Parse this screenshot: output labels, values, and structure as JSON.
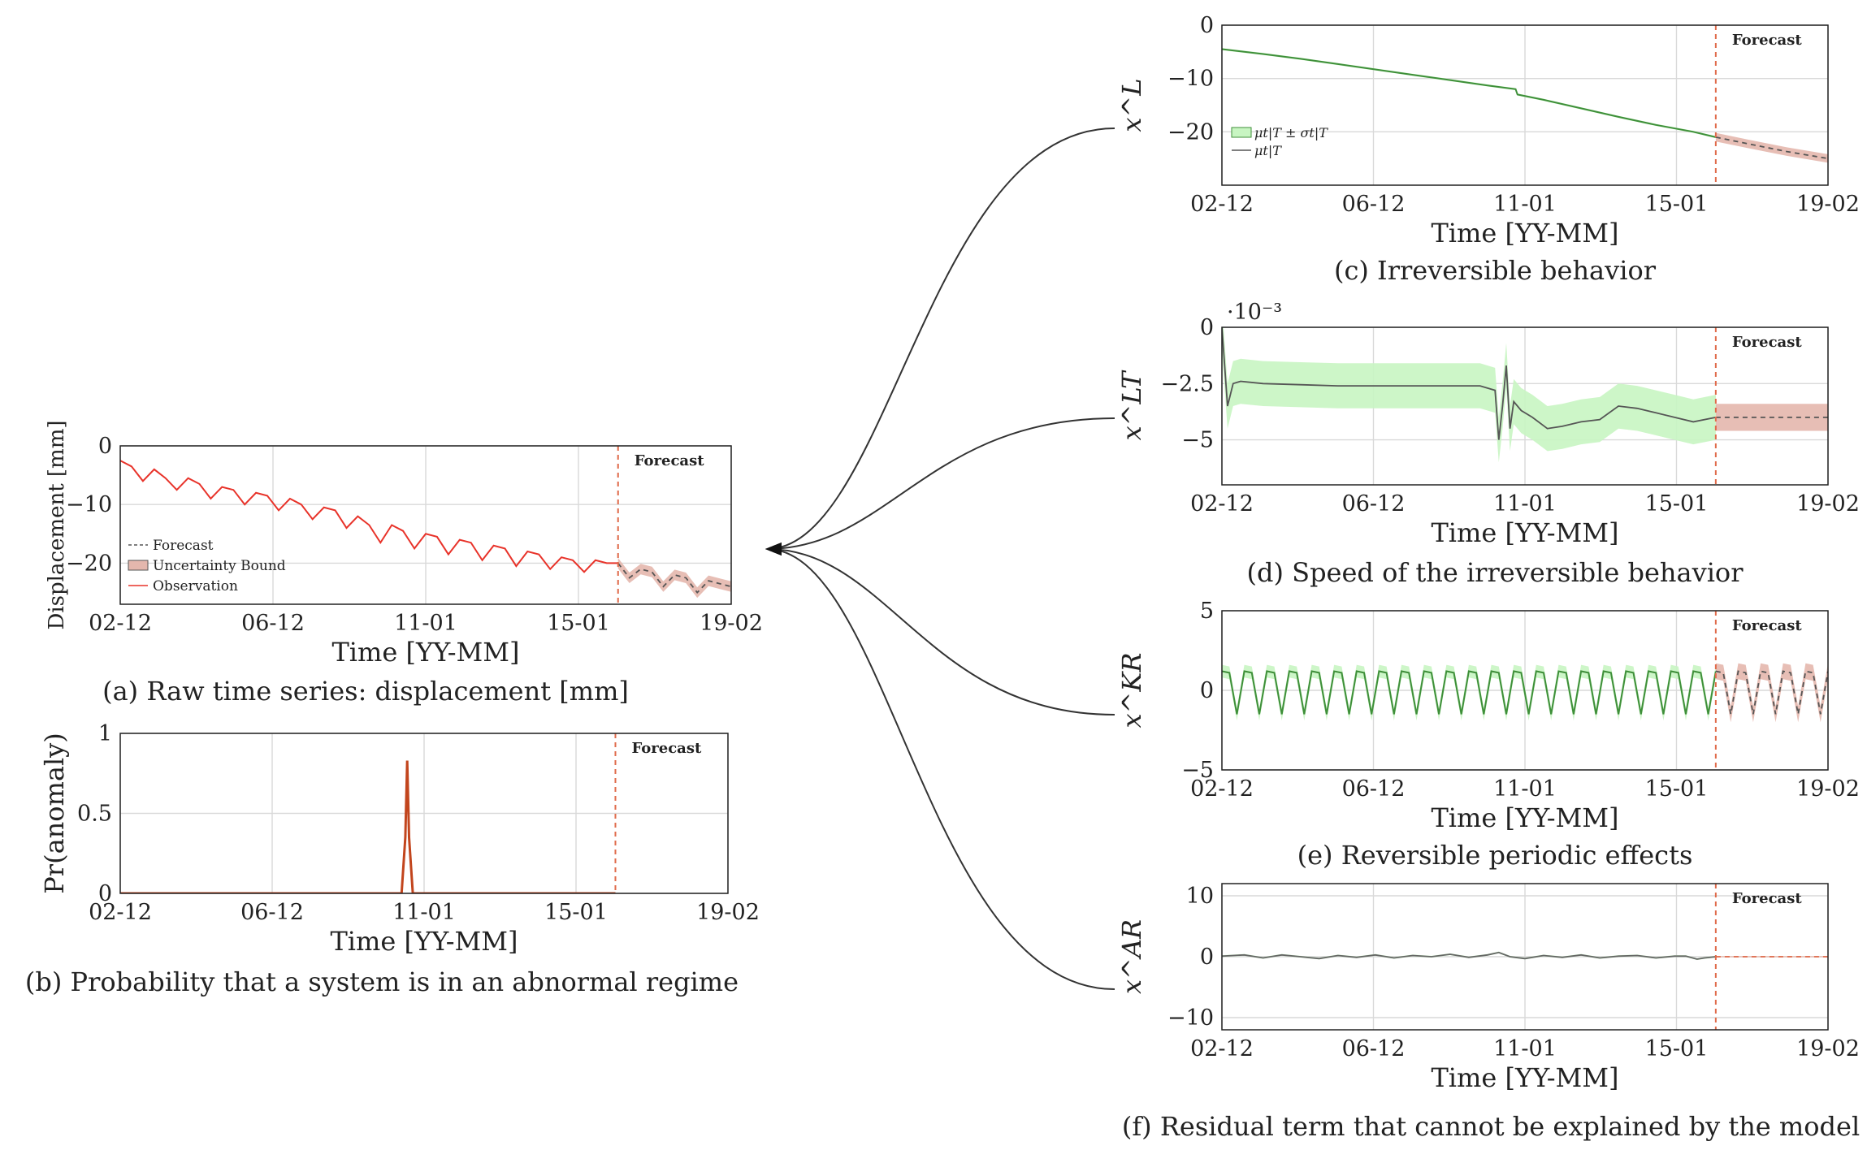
{
  "captions": {
    "a": "(a) Raw time series: displacement [mm]",
    "b": "(b) Probability that a system is in an abnormal regime",
    "c": "(c) Irreversible behavior",
    "d": "(d) Speed of the irreversible behavior",
    "e": "(e) Reversible periodic effects",
    "f": "(f) Residual term that cannot be explained by the model"
  },
  "colors": {
    "observation": "#e8332a",
    "forecast_line": "#555555",
    "forecast_band": "#e4b7ad",
    "forecast_vline": "#e06a4a",
    "state_line": "#3f8f3a",
    "state_band": "#c8f5c2",
    "anomaly": "#c2451d",
    "grid": "#d9d9d9",
    "axis": "#222222"
  },
  "chart_data": [
    {
      "id": "a",
      "type": "line",
      "ylabel": "Displacement [mm]",
      "xlabel": "Time [YY-MM]",
      "x_ticks": [
        "02-12",
        "06-12",
        "11-01",
        "15-01",
        "19-02"
      ],
      "y_ticks": [
        0,
        -10,
        -20
      ],
      "ylim": [
        -27,
        0
      ],
      "forecast_label": "Forecast",
      "forecast_start_year": 2016.1,
      "grid": true,
      "legend_position": "lower-left",
      "legend": [
        "Forecast",
        "Uncertainty Bound",
        "Observation"
      ],
      "series": [
        {
          "name": "Observation",
          "x": [
            2002.9,
            2003.2,
            2003.5,
            2003.8,
            2004.1,
            2004.4,
            2004.7,
            2005.0,
            2005.3,
            2005.6,
            2005.9,
            2006.2,
            2006.5,
            2006.8,
            2007.1,
            2007.4,
            2007.7,
            2008.0,
            2008.3,
            2008.6,
            2008.9,
            2009.2,
            2009.5,
            2009.8,
            2010.1,
            2010.4,
            2010.7,
            2011.0,
            2011.3,
            2011.6,
            2011.9,
            2012.2,
            2012.5,
            2012.8,
            2013.1,
            2013.4,
            2013.7,
            2014.0,
            2014.3,
            2014.6,
            2014.9,
            2015.2,
            2015.5,
            2015.8,
            2016.1
          ],
          "y": [
            -2.5,
            -3.5,
            -6.0,
            -4.0,
            -5.5,
            -7.5,
            -5.5,
            -6.5,
            -9.0,
            -7.0,
            -7.5,
            -10.0,
            -8.0,
            -8.5,
            -11.0,
            -9.0,
            -10.0,
            -12.5,
            -10.5,
            -11.0,
            -14.0,
            -12.0,
            -13.5,
            -16.5,
            -13.5,
            -14.5,
            -17.5,
            -15.0,
            -15.5,
            -18.5,
            -16.0,
            -16.5,
            -19.5,
            -17.0,
            -17.5,
            -20.5,
            -18.0,
            -18.5,
            -21.0,
            -19.0,
            -19.5,
            -21.5,
            -19.5,
            -20.0,
            -20.0
          ]
        },
        {
          "name": "Forecast",
          "x": [
            2016.1,
            2016.4,
            2016.7,
            2017.0,
            2017.3,
            2017.6,
            2017.9,
            2018.2,
            2018.5,
            2018.8,
            2019.1
          ],
          "y": [
            -20.0,
            -22.5,
            -21.0,
            -21.5,
            -24.0,
            -22.0,
            -22.5,
            -25.0,
            -23.0,
            -23.5,
            -24.0
          ],
          "band": 0.9
        }
      ]
    },
    {
      "id": "b",
      "type": "line",
      "ylabel": "Pr(anomaly)",
      "xlabel": "Time [YY-MM]",
      "x_ticks": [
        "02-12",
        "06-12",
        "11-01",
        "15-01",
        "19-02"
      ],
      "y_ticks": [
        "1",
        "0.5",
        "0"
      ],
      "ylim": [
        0,
        1
      ],
      "forecast_label": "Forecast",
      "forecast_start_year": 2016.1,
      "grid": true,
      "series": [
        {
          "name": "Pr(anomaly)",
          "x": [
            2002.9,
            2010.4,
            2010.5,
            2010.55,
            2010.6,
            2010.7,
            2016.1
          ],
          "y": [
            0,
            0,
            0.35,
            0.83,
            0.35,
            0,
            0
          ]
        }
      ]
    },
    {
      "id": "c",
      "type": "line",
      "ylabel": "x^L",
      "xlabel": "Time [YY-MM]",
      "x_ticks": [
        "02-12",
        "06-12",
        "11-01",
        "15-01",
        "19-02"
      ],
      "y_ticks": [
        0,
        -10,
        -20
      ],
      "ylim": [
        -30,
        0
      ],
      "forecast_label": "Forecast",
      "forecast_start_year": 2016.1,
      "grid": true,
      "legend_position": "lower-left",
      "legend": [
        "μt|T ± σt|T",
        "μt|T"
      ],
      "series": [
        {
          "name": "μt|T",
          "x": [
            2002.9,
            2004.0,
            2005.0,
            2006.0,
            2007.0,
            2008.0,
            2009.0,
            2010.0,
            2010.75,
            2010.8,
            2011.5,
            2012.5,
            2013.5,
            2014.5,
            2015.5,
            2016.1
          ],
          "y": [
            -4.5,
            -5.4,
            -6.3,
            -7.3,
            -8.3,
            -9.3,
            -10.3,
            -11.3,
            -12.0,
            -13.0,
            -14.0,
            -15.6,
            -17.2,
            -18.7,
            -20.0,
            -21.0
          ],
          "band": 0.2
        },
        {
          "name": "Forecast",
          "x": [
            2016.1,
            2017.0,
            2018.0,
            2019.1
          ],
          "y": [
            -21.0,
            -22.3,
            -23.7,
            -25.0
          ],
          "band": 0.8
        }
      ]
    },
    {
      "id": "d",
      "type": "line",
      "ylabel": "x^LT",
      "xlabel": "Time [YY-MM]",
      "x_ticks": [
        "02-12",
        "06-12",
        "11-01",
        "15-01",
        "19-02"
      ],
      "y_ticks": [
        0,
        -2.5,
        -5
      ],
      "y_multiplier": "·10⁻³",
      "ylim": [
        -7,
        0
      ],
      "forecast_label": "Forecast",
      "forecast_start_year": 2016.1,
      "grid": true,
      "series": [
        {
          "name": "μt|T",
          "x": [
            2002.9,
            2003.05,
            2003.2,
            2003.4,
            2004.0,
            2005.0,
            2006.0,
            2007.0,
            2008.0,
            2009.0,
            2009.8,
            2010.2,
            2010.3,
            2010.4,
            2010.5,
            2010.6,
            2010.7,
            2010.8,
            2010.9,
            2011.2,
            2011.6,
            2012.0,
            2012.5,
            2013.0,
            2013.5,
            2014.0,
            2014.5,
            2015.0,
            2015.5,
            2016.1
          ],
          "y": [
            0,
            -3.5,
            -2.5,
            -2.4,
            -2.5,
            -2.55,
            -2.6,
            -2.6,
            -2.6,
            -2.6,
            -2.6,
            -2.8,
            -5.0,
            -3.5,
            -1.7,
            -4.5,
            -3.3,
            -3.5,
            -3.7,
            -4.0,
            -4.5,
            -4.4,
            -4.2,
            -4.1,
            -3.5,
            -3.6,
            -3.8,
            -4.0,
            -4.2,
            -4.0
          ],
          "band": 1.0
        },
        {
          "name": "Forecast",
          "x": [
            2016.1,
            2019.1
          ],
          "y": [
            -4.0,
            -4.0
          ],
          "band": 0.6
        }
      ]
    },
    {
      "id": "e",
      "type": "line",
      "ylabel": "x^KR",
      "xlabel": "Time [YY-MM]",
      "x_ticks": [
        "02-12",
        "06-12",
        "11-01",
        "15-01",
        "19-02"
      ],
      "y_ticks": [
        5,
        0,
        -5
      ],
      "ylim": [
        -5,
        5
      ],
      "forecast_label": "Forecast",
      "forecast_start_year": 2016.1,
      "grid": true,
      "series": [
        {
          "name": "μt|T",
          "x": [
            2002.9,
            2003.1,
            2003.3,
            2003.5,
            2003.7,
            2003.9,
            2004.1,
            2004.3,
            2004.5,
            2004.7,
            2004.9,
            2005.1,
            2005.3,
            2005.5,
            2005.7,
            2005.9,
            2006.1,
            2006.3,
            2006.5,
            2006.7,
            2006.9,
            2007.1,
            2007.3,
            2007.5,
            2007.7,
            2007.9,
            2008.1,
            2008.3,
            2008.5,
            2008.7,
            2008.9,
            2009.1,
            2009.3,
            2009.5,
            2009.7,
            2009.9,
            2010.1,
            2010.3,
            2010.5,
            2010.7,
            2010.9,
            2011.1,
            2011.3,
            2011.5,
            2011.7,
            2011.9,
            2012.1,
            2012.3,
            2012.5,
            2012.7,
            2012.9,
            2013.1,
            2013.3,
            2013.5,
            2013.7,
            2013.9,
            2014.1,
            2014.3,
            2014.5,
            2014.7,
            2014.9,
            2015.1,
            2015.3,
            2015.5,
            2015.7,
            2015.9,
            2016.1
          ],
          "y": [
            1.2,
            1.1,
            -1.5,
            1.2,
            1.1,
            -1.5,
            1.2,
            1.1,
            -1.5,
            1.2,
            1.1,
            -1.5,
            1.2,
            1.1,
            -1.5,
            1.2,
            1.1,
            -1.5,
            1.2,
            1.1,
            -1.5,
            1.2,
            1.1,
            -1.5,
            1.2,
            1.1,
            -1.5,
            1.2,
            1.1,
            -1.5,
            1.2,
            1.1,
            -1.5,
            1.2,
            1.1,
            -1.5,
            1.2,
            1.1,
            -1.5,
            1.2,
            1.1,
            -1.5,
            1.2,
            1.1,
            -1.5,
            1.2,
            1.1,
            -1.5,
            1.2,
            1.1,
            -1.5,
            1.2,
            1.1,
            -1.5,
            1.2,
            1.1,
            -1.5,
            1.2,
            1.1,
            -1.5,
            1.2,
            1.1,
            -1.5,
            1.2,
            1.1,
            -1.5,
            1.2
          ],
          "band": 0.4
        },
        {
          "name": "Forecast",
          "x": [
            2016.1,
            2016.3,
            2016.5,
            2016.7,
            2016.9,
            2017.1,
            2017.3,
            2017.5,
            2017.7,
            2017.9,
            2018.1,
            2018.3,
            2018.5,
            2018.7,
            2018.9,
            2019.1
          ],
          "y": [
            1.2,
            1.1,
            -1.5,
            1.2,
            1.1,
            -1.5,
            1.2,
            1.1,
            -1.5,
            1.2,
            1.1,
            -1.5,
            1.2,
            1.1,
            -1.5,
            1.2
          ],
          "band": 0.5
        }
      ]
    },
    {
      "id": "f",
      "type": "line",
      "ylabel": "x^AR",
      "xlabel": "Time [YY-MM]",
      "x_ticks": [
        "02-12",
        "06-12",
        "11-01",
        "15-01",
        "19-02"
      ],
      "y_ticks": [
        10,
        0,
        -10
      ],
      "ylim": [
        -12,
        12
      ],
      "forecast_label": "Forecast",
      "forecast_start_year": 2016.1,
      "grid": true,
      "series": [
        {
          "name": "μt|T",
          "x": [
            2002.9,
            2003.5,
            2004.0,
            2004.5,
            2005.0,
            2005.5,
            2006.0,
            2006.5,
            2007.0,
            2007.5,
            2008.0,
            2008.5,
            2009.0,
            2009.5,
            2010.0,
            2010.3,
            2010.6,
            2011.0,
            2011.5,
            2012.0,
            2012.5,
            2013.0,
            2013.5,
            2014.0,
            2014.5,
            2015.0,
            2015.3,
            2015.6,
            2015.8,
            2016.1
          ],
          "y": [
            0.1,
            0.3,
            -0.2,
            0.3,
            0.0,
            -0.3,
            0.2,
            -0.1,
            0.3,
            -0.2,
            0.2,
            0.0,
            0.4,
            -0.1,
            0.3,
            0.7,
            0.0,
            -0.3,
            0.2,
            -0.1,
            0.3,
            -0.2,
            0.1,
            0.2,
            -0.2,
            0.1,
            0.1,
            -0.4,
            -0.2,
            0.0
          ],
          "band": 0.15
        },
        {
          "name": "Forecast",
          "x": [
            2016.1,
            2019.1
          ],
          "y": [
            0.0,
            0.0
          ],
          "band": 0.1
        }
      ]
    }
  ]
}
